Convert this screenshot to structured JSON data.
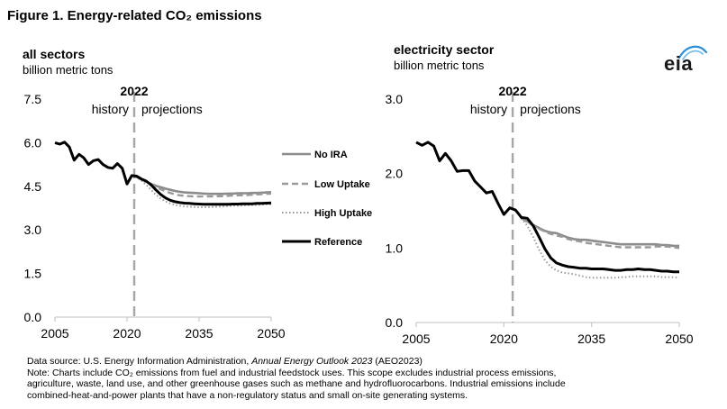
{
  "figure_title": "Figure 1. Energy-related CO₂ emissions",
  "logo_text": "eia",
  "source_prefix": "Data source: U.S. Energy Information Administration, ",
  "source_title": "Annual Energy Outlook 2023",
  "source_suffix": " (AEO2023)",
  "note_lines": [
    "Note: Charts include CO₂ emissions from fuel and industrial feedstock uses. This scope excludes industrial process emissions,",
    "agriculture, waste, land use, and other greenhouse gases such as methane and hydrofluorocarbons. Industrial emissions include",
    "combined-heat-and-power plants that have a non-regulatory status and small on-site generating systems."
  ],
  "colors": {
    "no_ira": "#8c8c8c",
    "low_uptake": "#9a9a9a",
    "high_uptake": "#9a9a9a",
    "reference": "#000000",
    "divider": "#a6a6a6",
    "axis": "#bfbfbf"
  },
  "chart_data": [
    {
      "type": "line",
      "title": "all sectors",
      "ylabel": "billion metric tons",
      "xlim": [
        2005,
        2050
      ],
      "ylim": [
        0,
        7.5
      ],
      "xticks": [
        2005,
        2020,
        2035,
        2050
      ],
      "yticks": [
        "0.0",
        "1.5",
        "3.0",
        "4.5",
        "6.0",
        "7.5"
      ],
      "divider_year": 2021.5,
      "divider_label": "2022",
      "history_label": "history",
      "projections_label": "projections",
      "legend": [
        "No IRA",
        "Low Uptake",
        "High Uptake",
        "Reference"
      ],
      "series": [
        {
          "name": "No IRA",
          "x": [
            2021,
            2022,
            2023,
            2024,
            2025,
            2026,
            2027,
            2028,
            2029,
            2030,
            2031,
            2032,
            2033,
            2034,
            2035,
            2036,
            2037,
            2038,
            2039,
            2040,
            2041,
            2042,
            2043,
            2044,
            2045,
            2046,
            2047,
            2048,
            2049,
            2050
          ],
          "values": [
            4.87,
            4.82,
            4.74,
            4.66,
            4.58,
            4.52,
            4.47,
            4.42,
            4.38,
            4.34,
            4.31,
            4.29,
            4.28,
            4.27,
            4.26,
            4.25,
            4.24,
            4.24,
            4.24,
            4.24,
            4.25,
            4.25,
            4.26,
            4.26,
            4.26,
            4.27,
            4.27,
            4.28,
            4.29,
            4.3
          ]
        },
        {
          "name": "Low Uptake",
          "x": [
            2021,
            2022,
            2023,
            2024,
            2025,
            2026,
            2027,
            2028,
            2029,
            2030,
            2031,
            2032,
            2033,
            2034,
            2035,
            2036,
            2037,
            2038,
            2039,
            2040,
            2041,
            2042,
            2043,
            2044,
            2045,
            2046,
            2047,
            2048,
            2049,
            2050
          ],
          "values": [
            4.87,
            4.82,
            4.74,
            4.65,
            4.55,
            4.47,
            4.4,
            4.33,
            4.27,
            4.22,
            4.19,
            4.17,
            4.16,
            4.15,
            4.15,
            4.15,
            4.15,
            4.15,
            4.16,
            4.16,
            4.17,
            4.18,
            4.19,
            4.19,
            4.2,
            4.21,
            4.22,
            4.23,
            4.24,
            4.25
          ]
        },
        {
          "name": "High Uptake",
          "x": [
            2021,
            2022,
            2023,
            2024,
            2025,
            2026,
            2027,
            2028,
            2029,
            2030,
            2031,
            2032,
            2033,
            2034,
            2035,
            2036,
            2037,
            2038,
            2039,
            2040,
            2041,
            2042,
            2043,
            2044,
            2045,
            2046,
            2047,
            2048,
            2049,
            2050
          ],
          "values": [
            4.87,
            4.8,
            4.7,
            4.55,
            4.38,
            4.21,
            4.08,
            3.98,
            3.91,
            3.86,
            3.83,
            3.81,
            3.8,
            3.79,
            3.78,
            3.78,
            3.78,
            3.79,
            3.8,
            3.81,
            3.82,
            3.83,
            3.83,
            3.84,
            3.85,
            3.86,
            3.86,
            3.87,
            3.88,
            3.88
          ]
        },
        {
          "name": "Reference",
          "x": [
            2005,
            2006,
            2007,
            2008,
            2009,
            2010,
            2011,
            2012,
            2013,
            2014,
            2015,
            2016,
            2017,
            2018,
            2019,
            2020,
            2021,
            2022,
            2023,
            2024,
            2025,
            2026,
            2027,
            2028,
            2029,
            2030,
            2031,
            2032,
            2033,
            2034,
            2035,
            2036,
            2037,
            2038,
            2039,
            2040,
            2041,
            2042,
            2043,
            2044,
            2045,
            2046,
            2047,
            2048,
            2049,
            2050
          ],
          "values": [
            6.0,
            5.95,
            6.02,
            5.85,
            5.4,
            5.6,
            5.48,
            5.25,
            5.38,
            5.42,
            5.25,
            5.15,
            5.12,
            5.28,
            5.12,
            4.58,
            4.87,
            4.85,
            4.75,
            4.68,
            4.55,
            4.38,
            4.22,
            4.1,
            4.02,
            3.97,
            3.94,
            3.92,
            3.91,
            3.9,
            3.89,
            3.88,
            3.88,
            3.88,
            3.88,
            3.88,
            3.88,
            3.89,
            3.89,
            3.9,
            3.9,
            3.9,
            3.91,
            3.91,
            3.92,
            3.93
          ]
        }
      ]
    },
    {
      "type": "line",
      "title": "electricity sector",
      "ylabel": "billion metric tons",
      "xlim": [
        2005,
        2050
      ],
      "ylim": [
        0,
        3.0
      ],
      "xticks": [
        2005,
        2020,
        2035,
        2050
      ],
      "yticks": [
        "0.0",
        "1.0",
        "2.0",
        "3.0"
      ],
      "divider_year": 2021.5,
      "divider_label": "2022",
      "history_label": "history",
      "projections_label": "projections",
      "series": [
        {
          "name": "No IRA",
          "x": [
            2023,
            2024,
            2025,
            2026,
            2027,
            2028,
            2029,
            2030,
            2031,
            2032,
            2033,
            2034,
            2035,
            2036,
            2037,
            2038,
            2039,
            2040,
            2041,
            2042,
            2043,
            2044,
            2045,
            2046,
            2047,
            2048,
            2049,
            2050
          ],
          "values": [
            1.4,
            1.36,
            1.31,
            1.27,
            1.23,
            1.21,
            1.2,
            1.17,
            1.14,
            1.12,
            1.11,
            1.11,
            1.1,
            1.09,
            1.08,
            1.07,
            1.06,
            1.05,
            1.05,
            1.05,
            1.05,
            1.05,
            1.05,
            1.05,
            1.04,
            1.04,
            1.03,
            1.03
          ]
        },
        {
          "name": "Low Uptake",
          "x": [
            2023,
            2024,
            2025,
            2026,
            2027,
            2028,
            2029,
            2030,
            2031,
            2032,
            2033,
            2034,
            2035,
            2036,
            2037,
            2038,
            2039,
            2040,
            2041,
            2042,
            2043,
            2044,
            2045,
            2046,
            2047,
            2048,
            2049,
            2050
          ],
          "values": [
            1.4,
            1.35,
            1.3,
            1.26,
            1.22,
            1.19,
            1.17,
            1.15,
            1.12,
            1.1,
            1.09,
            1.07,
            1.06,
            1.05,
            1.04,
            1.03,
            1.02,
            1.01,
            1.01,
            1.01,
            1.01,
            1.01,
            1.01,
            1.02,
            1.02,
            1.02,
            1.01,
            1.0
          ]
        },
        {
          "name": "High Uptake",
          "x": [
            2023,
            2024,
            2025,
            2026,
            2027,
            2028,
            2029,
            2030,
            2031,
            2032,
            2033,
            2034,
            2035,
            2036,
            2037,
            2038,
            2039,
            2040,
            2041,
            2042,
            2043,
            2044,
            2045,
            2046,
            2047,
            2048,
            2049,
            2050
          ],
          "values": [
            1.4,
            1.3,
            1.15,
            0.98,
            0.84,
            0.75,
            0.7,
            0.67,
            0.66,
            0.65,
            0.63,
            0.61,
            0.6,
            0.6,
            0.6,
            0.6,
            0.6,
            0.61,
            0.61,
            0.62,
            0.62,
            0.62,
            0.62,
            0.62,
            0.61,
            0.61,
            0.61,
            0.6
          ]
        },
        {
          "name": "Reference",
          "x": [
            2005,
            2006,
            2007,
            2008,
            2009,
            2010,
            2011,
            2012,
            2013,
            2014,
            2015,
            2016,
            2017,
            2018,
            2019,
            2020,
            2021,
            2022,
            2023,
            2024,
            2025,
            2026,
            2027,
            2028,
            2029,
            2030,
            2031,
            2032,
            2033,
            2034,
            2035,
            2036,
            2037,
            2038,
            2039,
            2040,
            2041,
            2042,
            2043,
            2044,
            2045,
            2046,
            2047,
            2048,
            2049,
            2050
          ],
          "values": [
            2.42,
            2.38,
            2.42,
            2.37,
            2.17,
            2.27,
            2.17,
            2.03,
            2.04,
            2.04,
            1.9,
            1.82,
            1.74,
            1.76,
            1.6,
            1.45,
            1.54,
            1.51,
            1.41,
            1.4,
            1.3,
            1.15,
            0.99,
            0.87,
            0.8,
            0.77,
            0.75,
            0.74,
            0.73,
            0.73,
            0.72,
            0.72,
            0.72,
            0.71,
            0.7,
            0.7,
            0.71,
            0.71,
            0.72,
            0.71,
            0.71,
            0.7,
            0.69,
            0.69,
            0.68,
            0.68
          ]
        }
      ]
    }
  ]
}
